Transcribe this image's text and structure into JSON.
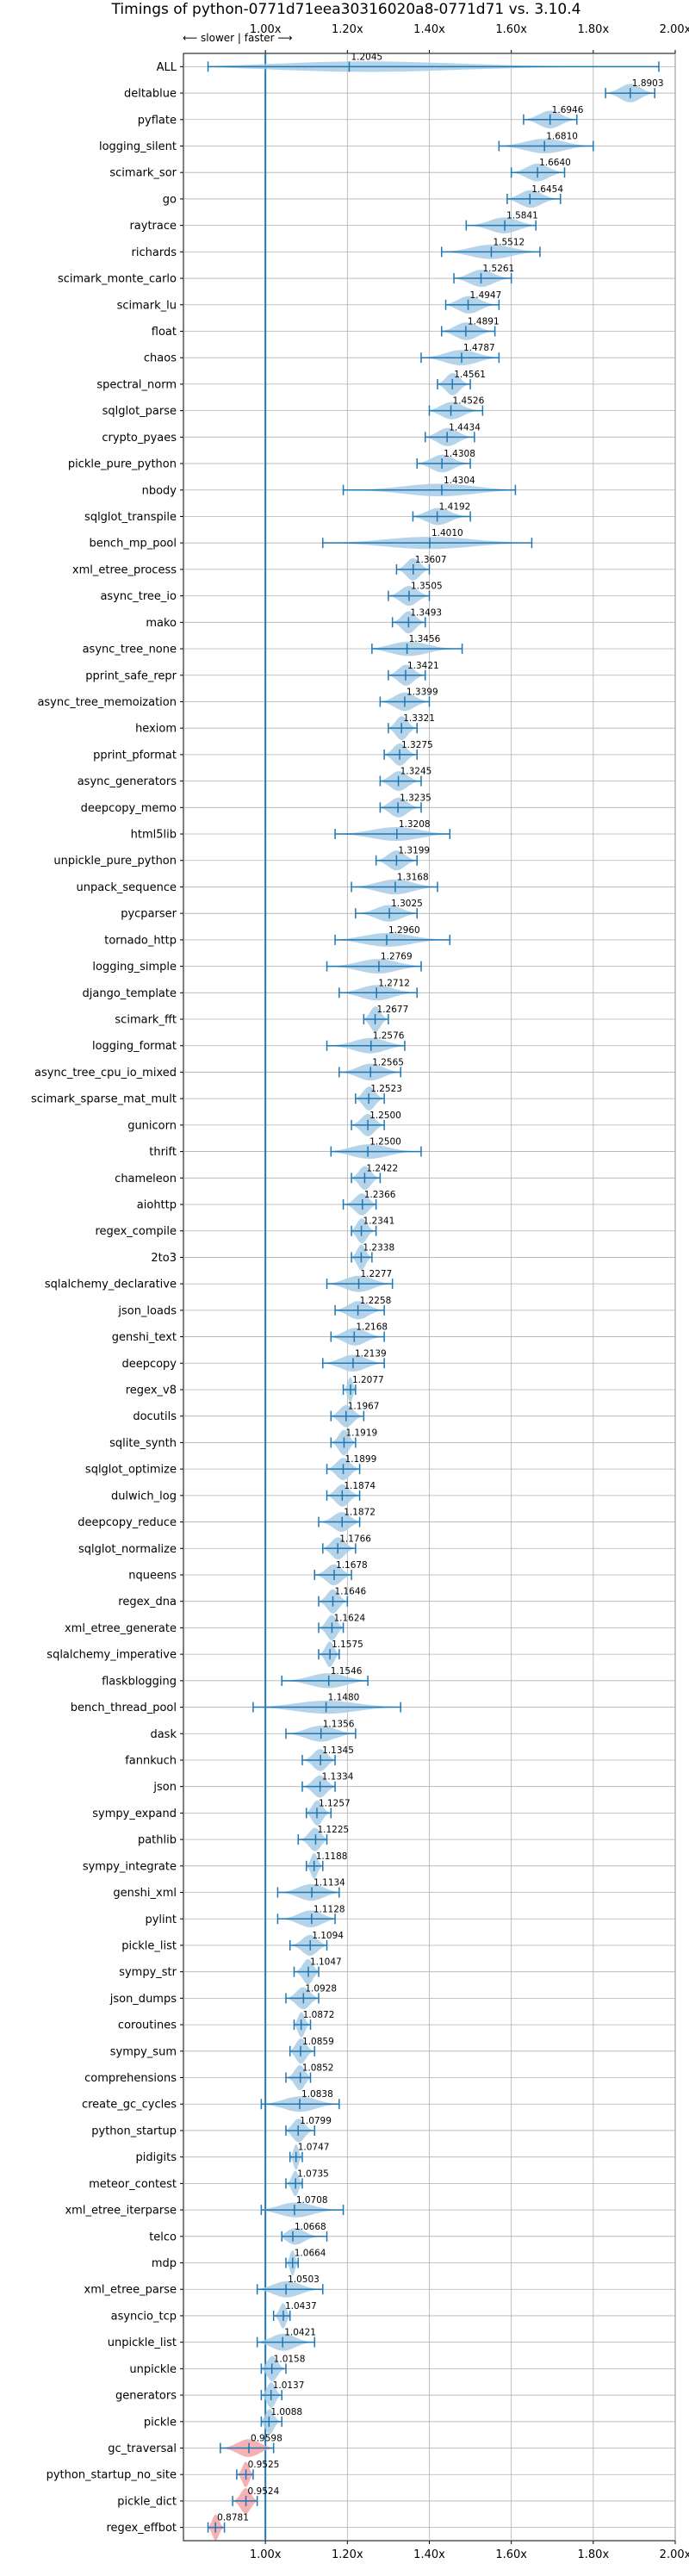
{
  "chart_data": {
    "type": "violin",
    "title": "Timings of python-0771d71eea30316020a8-0771d71 vs. 3.10.4",
    "direction_note": "⟵ slower | faster ⟶",
    "xlim": [
      0.8,
      2.0
    ],
    "xticks": [
      1.0,
      1.2,
      1.4,
      1.6,
      1.8,
      2.0
    ],
    "xtick_labels": [
      "1.00x",
      "1.20x",
      "1.40x",
      "1.60x",
      "1.80x",
      "2.00x"
    ],
    "grid": true,
    "reference_line": 1.0,
    "colors": {
      "faster": "#a8cce6",
      "slower": "#f3a3a6",
      "line": "#1f77b4"
    },
    "categories": [
      "ALL",
      "deltablue",
      "pyflate",
      "logging_silent",
      "scimark_sor",
      "go",
      "raytrace",
      "richards",
      "scimark_monte_carlo",
      "scimark_lu",
      "float",
      "chaos",
      "spectral_norm",
      "sqlglot_parse",
      "crypto_pyaes",
      "pickle_pure_python",
      "nbody",
      "sqlglot_transpile",
      "bench_mp_pool",
      "xml_etree_process",
      "async_tree_io",
      "mako",
      "async_tree_none",
      "pprint_safe_repr",
      "async_tree_memoization",
      "hexiom",
      "pprint_pformat",
      "async_generators",
      "deepcopy_memo",
      "html5lib",
      "unpickle_pure_python",
      "unpack_sequence",
      "pycparser",
      "tornado_http",
      "logging_simple",
      "django_template",
      "scimark_fft",
      "logging_format",
      "async_tree_cpu_io_mixed",
      "scimark_sparse_mat_mult",
      "gunicorn",
      "thrift",
      "chameleon",
      "aiohttp",
      "regex_compile",
      "2to3",
      "sqlalchemy_declarative",
      "json_loads",
      "genshi_text",
      "deepcopy",
      "regex_v8",
      "docutils",
      "sqlite_synth",
      "sqlglot_optimize",
      "dulwich_log",
      "deepcopy_reduce",
      "sqlglot_normalize",
      "nqueens",
      "regex_dna",
      "xml_etree_generate",
      "sqlalchemy_imperative",
      "flaskblogging",
      "bench_thread_pool",
      "dask",
      "fannkuch",
      "json",
      "sympy_expand",
      "pathlib",
      "sympy_integrate",
      "genshi_xml",
      "pylint",
      "pickle_list",
      "sympy_str",
      "json_dumps",
      "coroutines",
      "sympy_sum",
      "comprehensions",
      "create_gc_cycles",
      "python_startup",
      "pidigits",
      "meteor_contest",
      "xml_etree_iterparse",
      "telco",
      "mdp",
      "xml_etree_parse",
      "asyncio_tcp",
      "unpickle_list",
      "unpickle",
      "generators",
      "pickle",
      "gc_traversal",
      "python_startup_no_site",
      "pickle_dict",
      "regex_effbot"
    ],
    "values": [
      1.2045,
      1.8903,
      1.6946,
      1.681,
      1.664,
      1.6454,
      1.5841,
      1.5512,
      1.5261,
      1.4947,
      1.4891,
      1.4787,
      1.4561,
      1.4526,
      1.4434,
      1.4308,
      1.4304,
      1.4192,
      1.401,
      1.3607,
      1.3505,
      1.3493,
      1.3456,
      1.3421,
      1.3399,
      1.3321,
      1.3275,
      1.3245,
      1.3235,
      1.3208,
      1.3199,
      1.3168,
      1.3025,
      1.296,
      1.2769,
      1.2712,
      1.2677,
      1.2576,
      1.2565,
      1.2523,
      1.25,
      1.25,
      1.2422,
      1.2366,
      1.2341,
      1.2338,
      1.2277,
      1.2258,
      1.2168,
      1.2139,
      1.2077,
      1.1967,
      1.1919,
      1.1899,
      1.1874,
      1.1872,
      1.1766,
      1.1678,
      1.1646,
      1.1624,
      1.1575,
      1.1546,
      1.148,
      1.1356,
      1.1345,
      1.1334,
      1.1257,
      1.1225,
      1.1188,
      1.1134,
      1.1128,
      1.1094,
      1.1047,
      1.0928,
      1.0872,
      1.0859,
      1.0852,
      1.0838,
      1.0799,
      1.0747,
      1.0735,
      1.0708,
      1.0668,
      1.0664,
      1.0503,
      1.0437,
      1.0421,
      1.0158,
      1.0137,
      1.0088,
      0.9598,
      0.9525,
      0.9524,
      0.8781
    ],
    "value_labels": [
      "1.2045",
      "1.8903",
      "1.6946",
      "1.6810",
      "1.6640",
      "1.6454",
      "1.5841",
      "1.5512",
      "1.5261",
      "1.4947",
      "1.4891",
      "1.4787",
      "1.4561",
      "1.4526",
      "1.4434",
      "1.4308",
      "1.4304",
      "1.4192",
      "1.4010",
      "1.3607",
      "1.3505",
      "1.3493",
      "1.3456",
      "1.3421",
      "1.3399",
      "1.3321",
      "1.3275",
      "1.3245",
      "1.3235",
      "1.3208",
      "1.3199",
      "1.3168",
      "1.3025",
      "1.2960",
      "1.2769",
      "1.2712",
      "1.2677",
      "1.2576",
      "1.2565",
      "1.2523",
      "1.2500",
      "1.2500",
      "1.2422",
      "1.2366",
      "1.2341",
      "1.2338",
      "1.2277",
      "1.2258",
      "1.2168",
      "1.2139",
      "1.2077",
      "1.1967",
      "1.1919",
      "1.1899",
      "1.1874",
      "1.1872",
      "1.1766",
      "1.1678",
      "1.1646",
      "1.1624",
      "1.1575",
      "1.1546",
      "1.1480",
      "1.1356",
      "1.1345",
      "1.1334",
      "1.1257",
      "1.1225",
      "1.1188",
      "1.1134",
      "1.1128",
      "1.1094",
      "1.1047",
      "1.0928",
      "1.0872",
      "1.0859",
      "1.0852",
      "1.0838",
      "1.0799",
      "1.0747",
      "1.0735",
      "1.0708",
      "1.0668",
      "1.0664",
      "1.0503",
      "1.0437",
      "1.0421",
      "1.0158",
      "1.0137",
      "1.0088",
      "0.9598",
      "0.9525",
      "0.9524",
      "0.8781"
    ],
    "ranges": [
      [
        0.86,
        1.96
      ],
      [
        1.83,
        1.95
      ],
      [
        1.63,
        1.76
      ],
      [
        1.57,
        1.8
      ],
      [
        1.6,
        1.73
      ],
      [
        1.59,
        1.72
      ],
      [
        1.49,
        1.66
      ],
      [
        1.43,
        1.67
      ],
      [
        1.46,
        1.6
      ],
      [
        1.44,
        1.57
      ],
      [
        1.43,
        1.56
      ],
      [
        1.38,
        1.57
      ],
      [
        1.42,
        1.5
      ],
      [
        1.4,
        1.53
      ],
      [
        1.39,
        1.51
      ],
      [
        1.37,
        1.5
      ],
      [
        1.19,
        1.61
      ],
      [
        1.36,
        1.5
      ],
      [
        1.14,
        1.65
      ],
      [
        1.32,
        1.4
      ],
      [
        1.3,
        1.4
      ],
      [
        1.31,
        1.39
      ],
      [
        1.26,
        1.48
      ],
      [
        1.3,
        1.39
      ],
      [
        1.28,
        1.4
      ],
      [
        1.3,
        1.37
      ],
      [
        1.29,
        1.37
      ],
      [
        1.28,
        1.38
      ],
      [
        1.28,
        1.38
      ],
      [
        1.17,
        1.45
      ],
      [
        1.27,
        1.37
      ],
      [
        1.21,
        1.42
      ],
      [
        1.22,
        1.37
      ],
      [
        1.17,
        1.45
      ],
      [
        1.15,
        1.38
      ],
      [
        1.18,
        1.37
      ],
      [
        1.24,
        1.3
      ],
      [
        1.15,
        1.34
      ],
      [
        1.18,
        1.33
      ],
      [
        1.22,
        1.29
      ],
      [
        1.21,
        1.29
      ],
      [
        1.16,
        1.38
      ],
      [
        1.21,
        1.28
      ],
      [
        1.19,
        1.27
      ],
      [
        1.21,
        1.27
      ],
      [
        1.21,
        1.26
      ],
      [
        1.15,
        1.31
      ],
      [
        1.17,
        1.29
      ],
      [
        1.16,
        1.29
      ],
      [
        1.14,
        1.29
      ],
      [
        1.19,
        1.22
      ],
      [
        1.16,
        1.24
      ],
      [
        1.16,
        1.22
      ],
      [
        1.15,
        1.23
      ],
      [
        1.15,
        1.23
      ],
      [
        1.13,
        1.23
      ],
      [
        1.14,
        1.22
      ],
      [
        1.12,
        1.21
      ],
      [
        1.13,
        1.2
      ],
      [
        1.13,
        1.19
      ],
      [
        1.13,
        1.18
      ],
      [
        1.04,
        1.25
      ],
      [
        0.97,
        1.33
      ],
      [
        1.05,
        1.22
      ],
      [
        1.09,
        1.17
      ],
      [
        1.09,
        1.17
      ],
      [
        1.1,
        1.16
      ],
      [
        1.08,
        1.15
      ],
      [
        1.1,
        1.14
      ],
      [
        1.03,
        1.18
      ],
      [
        1.03,
        1.17
      ],
      [
        1.06,
        1.15
      ],
      [
        1.07,
        1.13
      ],
      [
        1.05,
        1.13
      ],
      [
        1.07,
        1.11
      ],
      [
        1.06,
        1.12
      ],
      [
        1.05,
        1.11
      ],
      [
        0.99,
        1.18
      ],
      [
        1.05,
        1.12
      ],
      [
        1.06,
        1.09
      ],
      [
        1.05,
        1.09
      ],
      [
        0.99,
        1.19
      ],
      [
        1.04,
        1.15
      ],
      [
        1.05,
        1.08
      ],
      [
        0.98,
        1.14
      ],
      [
        1.02,
        1.06
      ],
      [
        0.98,
        1.12
      ],
      [
        0.99,
        1.05
      ],
      [
        0.99,
        1.04
      ],
      [
        0.99,
        1.04
      ],
      [
        0.89,
        1.02
      ],
      [
        0.93,
        0.97
      ],
      [
        0.92,
        0.98
      ],
      [
        0.86,
        0.9
      ]
    ]
  }
}
